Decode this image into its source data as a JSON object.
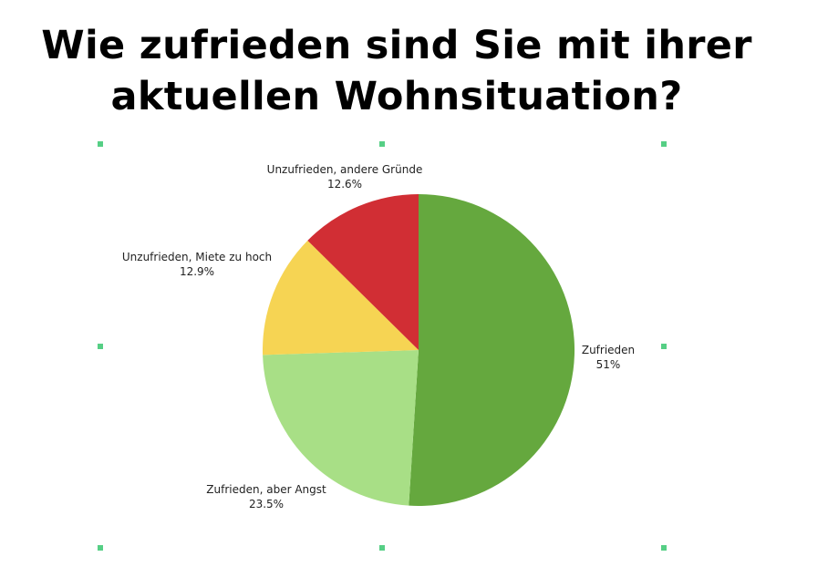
{
  "title": {
    "line1": "Wie zufrieden sind Sie mit ihrer",
    "line2": "aktuellen Wohnsituation?"
  },
  "chart_data": {
    "type": "pie",
    "title": "Wie zufrieden sind Sie mit ihrer aktuellen Wohnsituation?",
    "slices": [
      {
        "label": "Zufrieden",
        "value": 51,
        "display": "51%",
        "color": "#65a83e"
      },
      {
        "label": "Zufrieden, aber Angst",
        "value": 23.5,
        "display": "23.5%",
        "color": "#a8df86"
      },
      {
        "label": "Unzufrieden, Miete zu hoch",
        "value": 12.9,
        "display": "12.9%",
        "color": "#f6d453"
      },
      {
        "label": "Unzufrieden, andere Gründe",
        "value": 12.6,
        "display": "12.6%",
        "color": "#d12e34"
      }
    ]
  },
  "colors": {
    "selection_handle": "#56cf85"
  }
}
